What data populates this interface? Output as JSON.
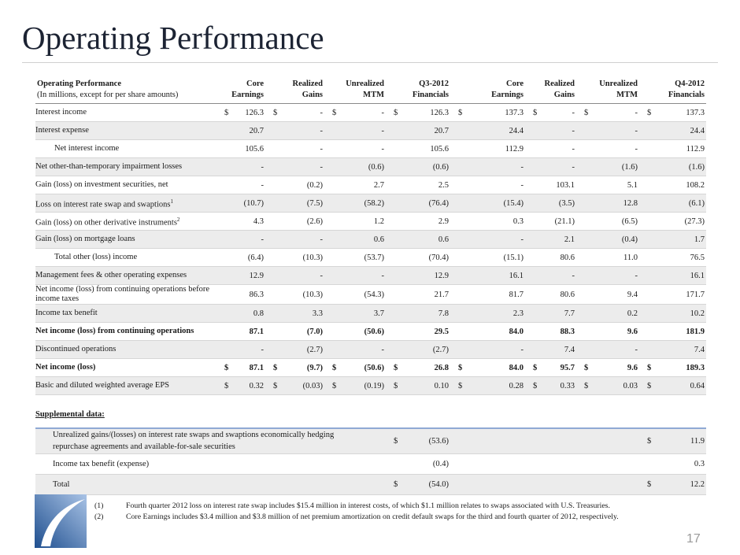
{
  "title": "Operating Performance",
  "table": {
    "heading": "Operating Performance",
    "subheading": "(In millions, except for per share amounts)",
    "columns": [
      [
        "Core",
        "Earnings"
      ],
      [
        "Realized",
        "Gains"
      ],
      [
        "Unrealized",
        "MTM"
      ],
      [
        "Q3-2012",
        "Financials"
      ],
      [
        "Core",
        "Earnings"
      ],
      [
        "Realized",
        "Gains"
      ],
      [
        "Unrealized",
        "MTM"
      ],
      [
        "Q4-2012",
        "Financials"
      ]
    ],
    "rows": [
      {
        "label": "Interest income",
        "currency": "$",
        "cells": [
          "126.3",
          "-",
          "-",
          "126.3",
          "137.3",
          "-",
          "-",
          "137.3"
        ]
      },
      {
        "label": "Interest expense",
        "cells": [
          "20.7",
          "-",
          "-",
          "20.7",
          "24.4",
          "-",
          "-",
          "24.4"
        ]
      },
      {
        "label": "Net interest income",
        "indent": true,
        "cells": [
          "105.6",
          "-",
          "-",
          "105.6",
          "112.9",
          "-",
          "-",
          "112.9"
        ]
      },
      {
        "label": "Net other-than-temporary impairment losses",
        "cells": [
          "-",
          "-",
          "(0.6)",
          "(0.6)",
          "-",
          "-",
          "(1.6)",
          "(1.6)"
        ]
      },
      {
        "label": "Gain (loss) on investment securities, net",
        "cells": [
          "-",
          "(0.2)",
          "2.7",
          "2.5",
          "-",
          "103.1",
          "5.1",
          "108.2"
        ]
      },
      {
        "label": "Loss on interest rate swap and swaptions",
        "note": "1",
        "cells": [
          "(10.7)",
          "(7.5)",
          "(58.2)",
          "(76.4)",
          "(15.4)",
          "(3.5)",
          "12.8",
          "(6.1)"
        ]
      },
      {
        "label": "Gain (loss) on other derivative instruments",
        "note": "2",
        "cells": [
          "4.3",
          "(2.6)",
          "1.2",
          "2.9",
          "0.3",
          "(21.1)",
          "(6.5)",
          "(27.3)"
        ]
      },
      {
        "label": "Gain (loss) on mortgage loans",
        "cells": [
          "-",
          "-",
          "0.6",
          "0.6",
          "-",
          "2.1",
          "(0.4)",
          "1.7"
        ]
      },
      {
        "label": "Total other (loss) income",
        "indent": true,
        "cells": [
          "(6.4)",
          "(10.3)",
          "(53.7)",
          "(70.4)",
          "(15.1)",
          "80.6",
          "11.0",
          "76.5"
        ]
      },
      {
        "label": "Management fees & other operating expenses",
        "cells": [
          "12.9",
          "-",
          "-",
          "12.9",
          "16.1",
          "-",
          "-",
          "16.1"
        ]
      },
      {
        "label": "Net income (loss) from continuing operations before income taxes",
        "cells": [
          "86.3",
          "(10.3)",
          "(54.3)",
          "21.7",
          "81.7",
          "80.6",
          "9.4",
          "171.7"
        ]
      },
      {
        "label": "Income tax benefit",
        "cells": [
          "0.8",
          "3.3",
          "3.7",
          "7.8",
          "2.3",
          "7.7",
          "0.2",
          "10.2"
        ]
      },
      {
        "label": "Net income (loss) from continuing operations",
        "bold": true,
        "cells": [
          "87.1",
          "(7.0)",
          "(50.6)",
          "29.5",
          "84.0",
          "88.3",
          "9.6",
          "181.9"
        ]
      },
      {
        "label": "Discontinued operations",
        "cells": [
          "-",
          "(2.7)",
          "-",
          "(2.7)",
          "-",
          "7.4",
          "-",
          "7.4"
        ]
      },
      {
        "label": "Net income (loss)",
        "bold": true,
        "currency": "$",
        "cells": [
          "87.1",
          "(9.7)",
          "(50.6)",
          "26.8",
          "84.0",
          "95.7",
          "9.6",
          "189.3"
        ]
      },
      {
        "label": "Basic and diluted weighted average EPS",
        "currency": "$",
        "cells": [
          "0.32",
          "(0.03)",
          "(0.19)",
          "0.10",
          "0.28",
          "0.33",
          "0.03",
          "0.64"
        ]
      }
    ]
  },
  "supplemental": {
    "title": "Supplemental data:",
    "rows": [
      {
        "label": "Unrealized gains/(losses) on interest rate swaps and swaptions economically hedging repurchase agreements and available-for-sale securities",
        "currency": "$",
        "q3": "(53.6)",
        "q4": "11.9"
      },
      {
        "label": "Income tax benefit (expense)",
        "q3": "(0.4)",
        "q4": "0.3"
      },
      {
        "label": "Total",
        "currency": "$",
        "q3": "(54.0)",
        "q4": "12.2"
      }
    ]
  },
  "footnotes": [
    {
      "marker": "(1)",
      "text": "Fourth quarter 2012 loss on interest rate swap includes $15.4 million in interest costs, of which $1.1 million relates to swaps associated with U.S. Treasuries."
    },
    {
      "marker": "(2)",
      "text": "Core Earnings includes $3.4 million and $3.8 million of net premium amortization on credit default swaps for the third and fourth quarter of 2012, respectively."
    }
  ],
  "page_number": "17"
}
